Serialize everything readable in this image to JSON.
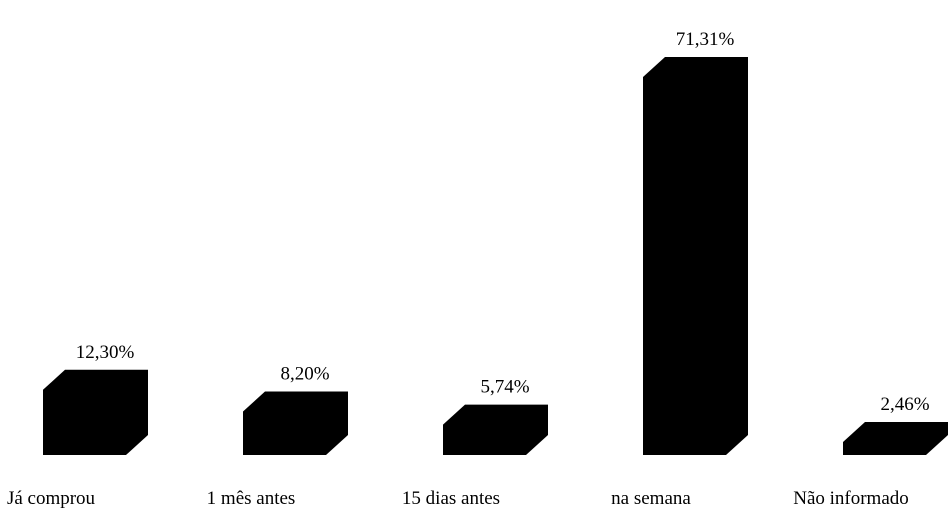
{
  "chart_data": {
    "type": "bar3d",
    "categories": [
      "Já comprou",
      "1 mês antes",
      "15 dias antes",
      "na semana",
      "Não informado"
    ],
    "values": [
      12.3,
      8.2,
      5.74,
      71.31,
      2.46
    ],
    "value_labels": [
      "12,30%",
      "8,20%",
      "5,74%",
      "71,31%",
      "2,46%"
    ],
    "color": "#000000"
  }
}
